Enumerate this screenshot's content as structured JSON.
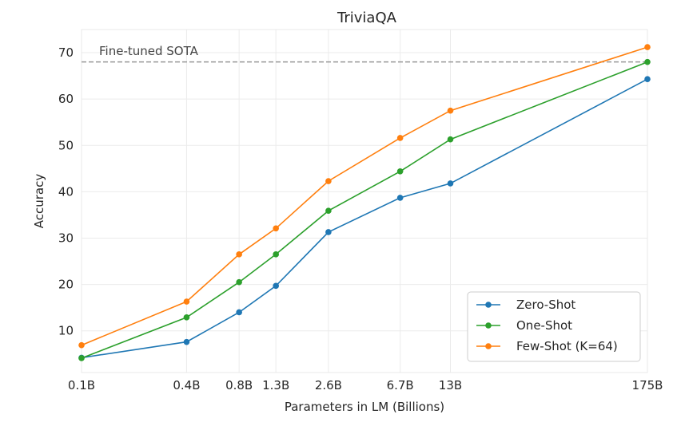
{
  "chart_data": {
    "type": "line",
    "title": "TriviaQA",
    "xlabel": "Parameters in LM (Billions)",
    "ylabel": "Accuracy",
    "categories": [
      "0.1B",
      "0.4B",
      "0.8B",
      "1.3B",
      "2.6B",
      "6.7B",
      "13B",
      "175B"
    ],
    "x": [
      0.1,
      0.4,
      0.8,
      1.3,
      2.6,
      6.7,
      13,
      175
    ],
    "x_scale": "log",
    "ylim": [
      1,
      75
    ],
    "yticks": [
      10,
      20,
      30,
      40,
      50,
      60,
      70
    ],
    "grid": true,
    "legend_position": "lower-right",
    "reference_line": {
      "label": "Fine-tuned SOTA",
      "value": 68.0,
      "color": "#999999"
    },
    "series": [
      {
        "name": "Zero-Shot",
        "color": "#1f77b4",
        "values": [
          4.2,
          7.6,
          14.0,
          19.7,
          31.3,
          38.7,
          41.8,
          64.3
        ]
      },
      {
        "name": "One-Shot",
        "color": "#2ca02c",
        "values": [
          4.1,
          12.9,
          20.5,
          26.5,
          35.9,
          44.4,
          51.3,
          68.0
        ]
      },
      {
        "name": "Few-Shot (K=64)",
        "color": "#ff7f0e",
        "values": [
          6.9,
          16.3,
          26.5,
          32.1,
          42.3,
          51.6,
          57.5,
          71.2
        ]
      }
    ]
  }
}
